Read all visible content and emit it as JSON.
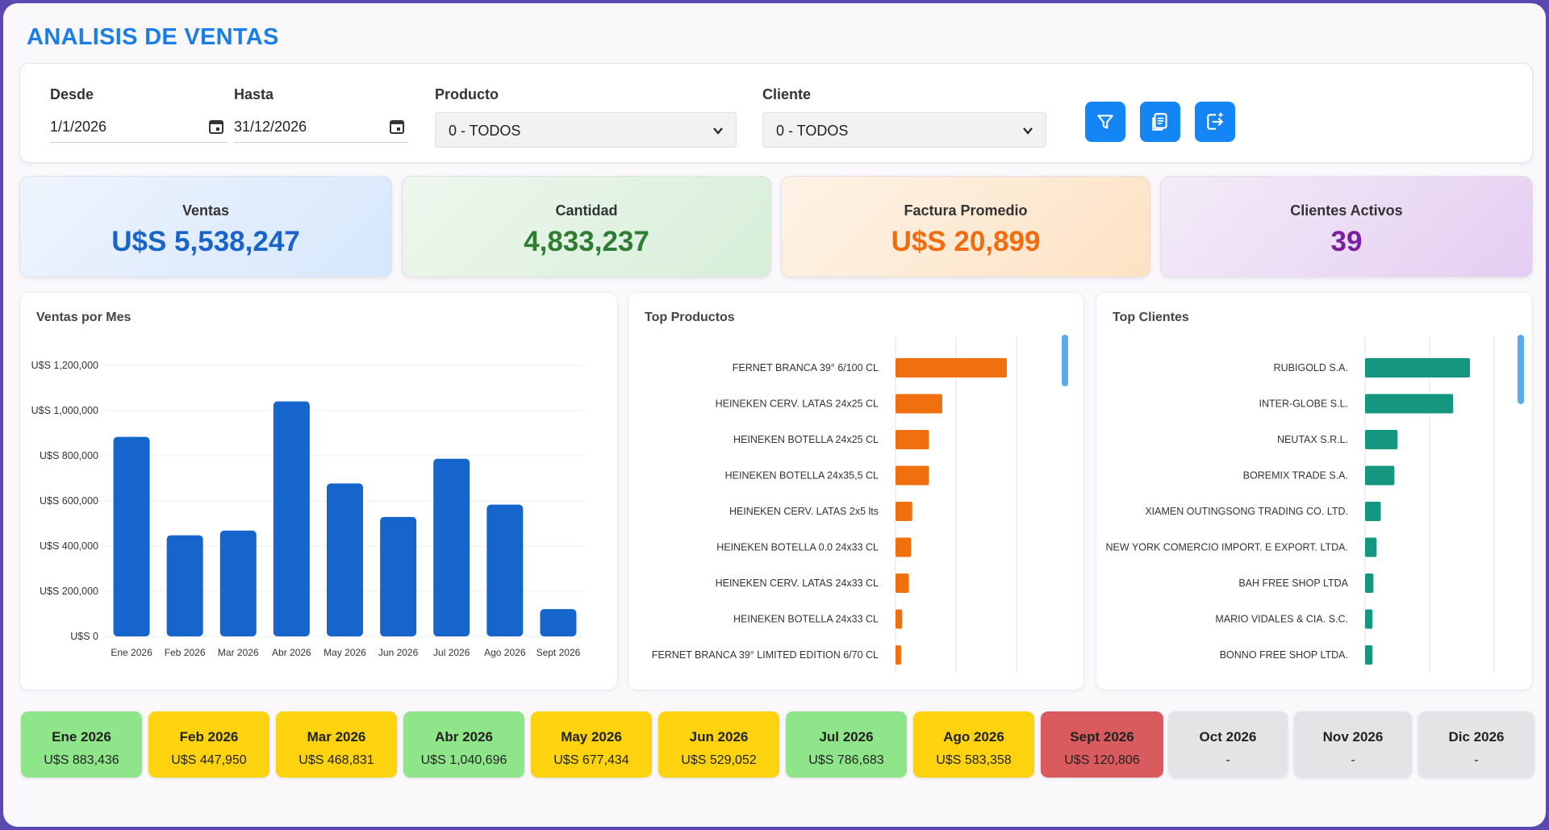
{
  "header": {
    "title": "ANALISIS DE VENTAS"
  },
  "filters": {
    "desde_label": "Desde",
    "desde_value": "1/1/2026",
    "hasta_label": "Hasta",
    "hasta_value": "31/12/2026",
    "producto_label": "Producto",
    "producto_value": "0 - TODOS",
    "cliente_label": "Cliente",
    "cliente_value": "0 - TODOS",
    "buttons": [
      "filter-icon",
      "report-icon",
      "export-icon"
    ]
  },
  "kpis": [
    {
      "label": "Ventas",
      "value": "U$S 5,538,247",
      "color": "#1a63c9"
    },
    {
      "label": "Cantidad",
      "value": "4,833,237",
      "color": "#2e7d32"
    },
    {
      "label": "Factura Promedio",
      "value": "U$S 20,899",
      "color": "#f26b0f"
    },
    {
      "label": "Clientes Activos",
      "value": "39",
      "color": "#7b1fa2"
    }
  ],
  "ventas_chart": {
    "title": "Ventas por Mes"
  },
  "top_productos": {
    "title": "Top Productos"
  },
  "top_clientes": {
    "title": "Top Clientes"
  },
  "chart_data": [
    {
      "type": "bar",
      "title": "Ventas por Mes",
      "categories": [
        "Ene 2026",
        "Feb 2026",
        "Mar 2026",
        "Abr 2026",
        "May 2026",
        "Jun 2026",
        "Jul 2026",
        "Ago 2026",
        "Sept 2026"
      ],
      "values": [
        883436,
        447950,
        468831,
        1040696,
        677434,
        529052,
        786683,
        583358,
        120806
      ],
      "yticks": [
        "U$S 0",
        "U$S 200,000",
        "U$S 400,000",
        "U$S 600,000",
        "U$S 800,000",
        "U$S 1,000,000",
        "U$S 1,200,000"
      ],
      "ylim": [
        0,
        1200000
      ],
      "color": "#1565cc",
      "grid": true
    },
    {
      "type": "bar",
      "orientation": "horizontal",
      "title": "Top Productos",
      "categories": [
        "FERNET BRANCA 39° 6/100 CL",
        "HEINEKEN CERV. LATAS 24x25 CL",
        "HEINEKEN BOTELLA 24x25 CL",
        "HEINEKEN BOTELLA 24x35,5 CL",
        "HEINEKEN CERV. LATAS 2x5 lts",
        "HEINEKEN BOTELLA 0.0 24x33 CL",
        "HEINEKEN CERV. LATAS 24x33 CL",
        "HEINEKEN BOTELLA 24x33 CL",
        "FERNET BRANCA 39° LIMITED EDITION 6/70 CL"
      ],
      "values": [
        100,
        42,
        30,
        30,
        15,
        14,
        12,
        6,
        5
      ],
      "color": "#f07010",
      "grid": true
    },
    {
      "type": "bar",
      "orientation": "horizontal",
      "title": "Top Clientes",
      "categories": [
        "RUBIGOLD S.A.",
        "INTER-GLOBE S.L.",
        "NEUTAX S.R.L.",
        "BOREMIX TRADE S.A.",
        "XIAMEN OUTINGSONG TRADING CO. LTD.",
        "NEW YORK COMERCIO IMPORT. E EXPORT. LTDA.",
        "BAH FREE SHOP LTDA",
        "MARIO VIDALES & CIA. S.C.",
        "BONNO FREE SHOP LTDA."
      ],
      "values": [
        100,
        84,
        31,
        28,
        15,
        11,
        8,
        7,
        7
      ],
      "color": "#15967f",
      "grid": true
    }
  ],
  "months": [
    {
      "month": "Ene 2026",
      "value": "U$S 883,436",
      "color": "#8fe68a"
    },
    {
      "month": "Feb 2026",
      "value": "U$S 447,950",
      "color": "#fdd20f"
    },
    {
      "month": "Mar 2026",
      "value": "U$S 468,831",
      "color": "#fdd20f"
    },
    {
      "month": "Abr 2026",
      "value": "U$S 1,040,696",
      "color": "#8fe68a"
    },
    {
      "month": "May 2026",
      "value": "U$S 677,434",
      "color": "#fdd20f"
    },
    {
      "month": "Jun 2026",
      "value": "U$S 529,052",
      "color": "#fdd20f"
    },
    {
      "month": "Jul 2026",
      "value": "U$S 786,683",
      "color": "#8fe68a"
    },
    {
      "month": "Ago 2026",
      "value": "U$S 583,358",
      "color": "#fdd20f"
    },
    {
      "month": "Sept 2026",
      "value": "U$S 120,806",
      "color": "#d95b5e"
    },
    {
      "month": "Oct 2026",
      "value": "-",
      "color": "#e4e4e6"
    },
    {
      "month": "Nov 2026",
      "value": "-",
      "color": "#e4e4e6"
    },
    {
      "month": "Dic 2026",
      "value": "-",
      "color": "#e4e4e6"
    }
  ]
}
